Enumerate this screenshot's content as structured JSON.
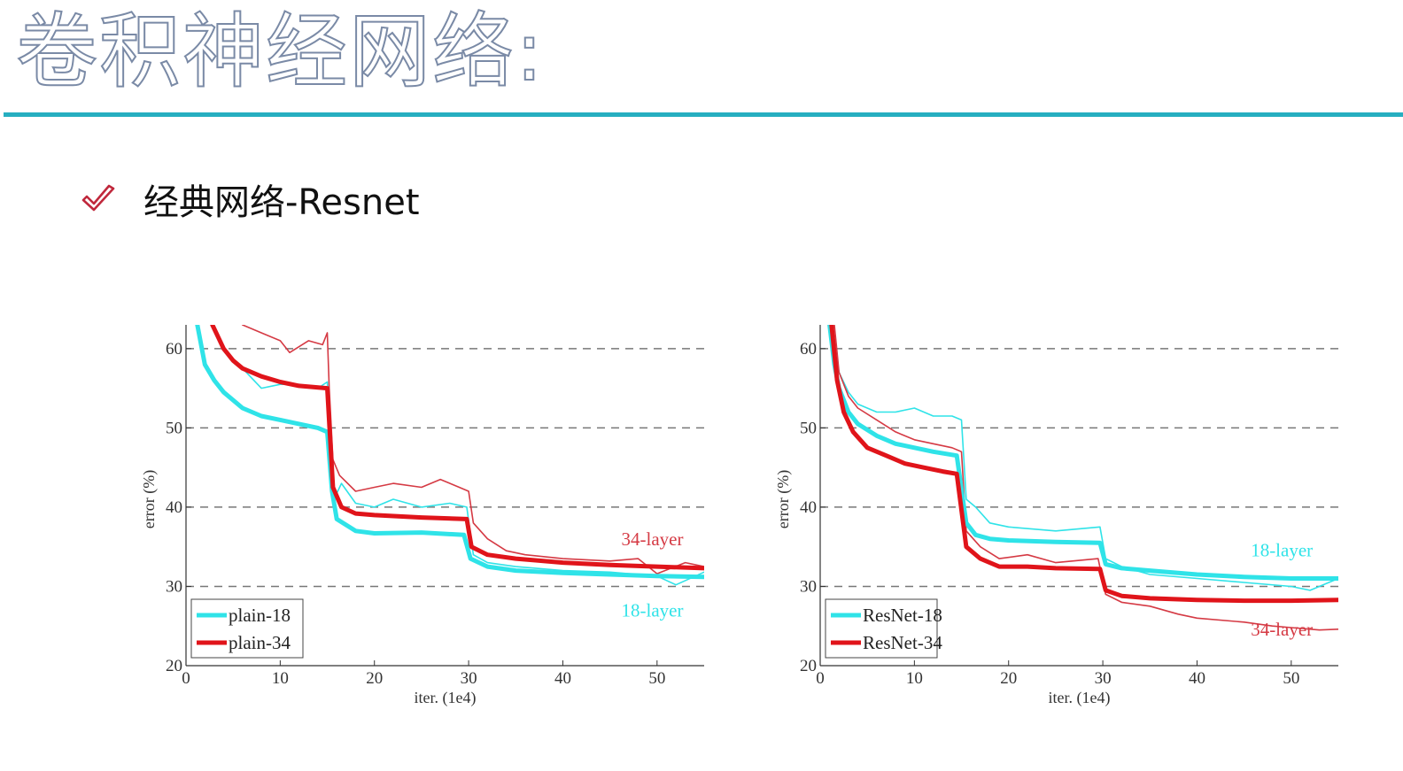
{
  "slide": {
    "title": "卷积神经网络:",
    "bullet": "经典网络-Resnet"
  },
  "colors": {
    "title_rule": "#26aec0",
    "check": "#c0283c",
    "cyan": "#2fe3e8",
    "red": "#e0141a",
    "thin_red": "#d53a44"
  },
  "chart_data": [
    {
      "type": "line",
      "title": "",
      "xlabel": "iter. (1e4)",
      "ylabel": "error (%)",
      "xlim": [
        0,
        55
      ],
      "ylim": [
        20,
        63
      ],
      "xticks": [
        "0",
        "10",
        "20",
        "30",
        "40",
        "50"
      ],
      "yticks": [
        "20",
        "30",
        "40",
        "50",
        "60"
      ],
      "gridlines_y": [
        30,
        40,
        50,
        60
      ],
      "legend": {
        "position": "bottom-left",
        "entries": [
          "plain-18",
          "plain-34"
        ]
      },
      "annotations": [
        {
          "text": "34-layer",
          "x": 49.5,
          "y": 35.2,
          "color": "red"
        },
        {
          "text": "18-layer",
          "x": 49.5,
          "y": 26.2,
          "color": "cyan"
        }
      ],
      "series": [
        {
          "name": "plain-18",
          "kind": "train",
          "color": "cyan",
          "points": [
            [
              1.2,
              63
            ],
            [
              2,
              58
            ],
            [
              3,
              56
            ],
            [
              4,
              54.5
            ],
            [
              5,
              53.5
            ],
            [
              6,
              52.5
            ],
            [
              8,
              51.5
            ],
            [
              10,
              51
            ],
            [
              12,
              50.5
            ],
            [
              14,
              50
            ],
            [
              15,
              49.5
            ],
            [
              15.5,
              42
            ],
            [
              16,
              38.5
            ],
            [
              18,
              37
            ],
            [
              20,
              36.7
            ],
            [
              25,
              36.8
            ],
            [
              29.5,
              36.5
            ],
            [
              30.2,
              33.5
            ],
            [
              32,
              32.5
            ],
            [
              35,
              32
            ],
            [
              40,
              31.7
            ],
            [
              45,
              31.5
            ],
            [
              50,
              31.3
            ],
            [
              55,
              31.2
            ]
          ]
        },
        {
          "name": "plain-34",
          "kind": "train",
          "color": "red",
          "points": [
            [
              2.8,
              63
            ],
            [
              4,
              60
            ],
            [
              5,
              58.5
            ],
            [
              6,
              57.5
            ],
            [
              8,
              56.5
            ],
            [
              10,
              55.8
            ],
            [
              12,
              55.3
            ],
            [
              15,
              55
            ],
            [
              15.6,
              42.5
            ],
            [
              16.5,
              40
            ],
            [
              18,
              39.2
            ],
            [
              20,
              39
            ],
            [
              25,
              38.7
            ],
            [
              29.8,
              38.5
            ],
            [
              30.3,
              35
            ],
            [
              32,
              34
            ],
            [
              35,
              33.5
            ],
            [
              40,
              33
            ],
            [
              45,
              32.7
            ],
            [
              50,
              32.5
            ],
            [
              55,
              32.3
            ]
          ]
        },
        {
          "name": "plain-18",
          "kind": "val",
          "color": "cyan",
          "points": [
            [
              6,
              57.5
            ],
            [
              8,
              55
            ],
            [
              10,
              55.5
            ],
            [
              12,
              55.5
            ],
            [
              14,
              55
            ],
            [
              15,
              55.8
            ],
            [
              15.7,
              41
            ],
            [
              16.5,
              43
            ],
            [
              18,
              40.5
            ],
            [
              20,
              40
            ],
            [
              22,
              41
            ],
            [
              25,
              40
            ],
            [
              28,
              40.5
            ],
            [
              29.8,
              40
            ],
            [
              30.5,
              34
            ],
            [
              32,
              33
            ],
            [
              35,
              32.5
            ],
            [
              40,
              32
            ],
            [
              45,
              31.8
            ],
            [
              50,
              31.3
            ],
            [
              52,
              30.2
            ],
            [
              55,
              31.8
            ]
          ]
        },
        {
          "name": "plain-34",
          "kind": "val",
          "color": "red",
          "points": [
            [
              6,
              63
            ],
            [
              8,
              62
            ],
            [
              10,
              61
            ],
            [
              11,
              59.5
            ],
            [
              13,
              61
            ],
            [
              14.5,
              60.5
            ],
            [
              15,
              62
            ],
            [
              15.2,
              55
            ],
            [
              15.6,
              46
            ],
            [
              16.3,
              44
            ],
            [
              18,
              42
            ],
            [
              20,
              42.5
            ],
            [
              22,
              43
            ],
            [
              25,
              42.5
            ],
            [
              27,
              43.5
            ],
            [
              29,
              42.5
            ],
            [
              30,
              42
            ],
            [
              30.5,
              38
            ],
            [
              32,
              36
            ],
            [
              34,
              34.5
            ],
            [
              36,
              34
            ],
            [
              40,
              33.5
            ],
            [
              45,
              33.2
            ],
            [
              48,
              33.5
            ],
            [
              50,
              31.6
            ],
            [
              53,
              33
            ],
            [
              55,
              32.5
            ]
          ]
        }
      ]
    },
    {
      "type": "line",
      "title": "",
      "xlabel": "iter. (1e4)",
      "ylabel": "error (%)",
      "xlim": [
        0,
        55
      ],
      "ylim": [
        20,
        63
      ],
      "xticks": [
        "0",
        "10",
        "20",
        "30",
        "40",
        "50"
      ],
      "yticks": [
        "20",
        "30",
        "40",
        "50",
        "60"
      ],
      "gridlines_y": [
        30,
        40,
        50,
        60
      ],
      "legend": {
        "position": "bottom-left",
        "entries": [
          "ResNet-18",
          "ResNet-34"
        ]
      },
      "annotations": [
        {
          "text": "18-layer",
          "x": 49,
          "y": 33.8,
          "color": "cyan"
        },
        {
          "text": "34-layer",
          "x": 49,
          "y": 23.8,
          "color": "red"
        }
      ],
      "series": [
        {
          "name": "ResNet-18",
          "kind": "train",
          "color": "cyan",
          "points": [
            [
              1,
              63
            ],
            [
              1.5,
              58
            ],
            [
              2,
              55
            ],
            [
              3,
              52
            ],
            [
              4,
              50.5
            ],
            [
              6,
              49
            ],
            [
              8,
              48
            ],
            [
              10,
              47.5
            ],
            [
              12,
              47
            ],
            [
              14.5,
              46.5
            ],
            [
              15.5,
              38
            ],
            [
              16.5,
              36.5
            ],
            [
              18,
              36
            ],
            [
              20,
              35.8
            ],
            [
              25,
              35.6
            ],
            [
              29.7,
              35.5
            ],
            [
              30.3,
              32.8
            ],
            [
              32,
              32.3
            ],
            [
              35,
              32
            ],
            [
              40,
              31.5
            ],
            [
              45,
              31.2
            ],
            [
              50,
              31
            ],
            [
              55,
              31
            ]
          ]
        },
        {
          "name": "ResNet-34",
          "kind": "train",
          "color": "red",
          "points": [
            [
              1.2,
              63
            ],
            [
              1.8,
              56
            ],
            [
              2.5,
              52
            ],
            [
              3.5,
              49.5
            ],
            [
              5,
              47.5
            ],
            [
              7,
              46.5
            ],
            [
              9,
              45.5
            ],
            [
              11,
              45
            ],
            [
              13,
              44.5
            ],
            [
              14.5,
              44.2
            ],
            [
              15.5,
              35
            ],
            [
              17,
              33.5
            ],
            [
              19,
              32.5
            ],
            [
              22,
              32.5
            ],
            [
              25,
              32.3
            ],
            [
              29.7,
              32.2
            ],
            [
              30.3,
              29.5
            ],
            [
              32,
              28.8
            ],
            [
              35,
              28.5
            ],
            [
              40,
              28.3
            ],
            [
              45,
              28.2
            ],
            [
              50,
              28.2
            ],
            [
              55,
              28.3
            ]
          ]
        },
        {
          "name": "ResNet-18",
          "kind": "val",
          "color": "cyan",
          "points": [
            [
              1,
              63
            ],
            [
              2,
              57
            ],
            [
              3,
              54.5
            ],
            [
              4,
              53
            ],
            [
              6,
              52
            ],
            [
              8,
              52
            ],
            [
              10,
              52.5
            ],
            [
              12,
              51.5
            ],
            [
              14,
              51.5
            ],
            [
              15,
              51
            ],
            [
              15.5,
              41
            ],
            [
              16.5,
              40
            ],
            [
              18,
              38
            ],
            [
              20,
              37.5
            ],
            [
              25,
              37
            ],
            [
              29.7,
              37.5
            ],
            [
              30.3,
              33.5
            ],
            [
              32,
              32.5
            ],
            [
              35,
              31.5
            ],
            [
              40,
              31
            ],
            [
              45,
              30.5
            ],
            [
              50,
              30
            ],
            [
              52,
              29.5
            ],
            [
              55,
              31
            ]
          ]
        },
        {
          "name": "ResNet-34",
          "kind": "val",
          "color": "red",
          "points": [
            [
              1.5,
              63
            ],
            [
              2,
              57
            ],
            [
              3,
              54
            ],
            [
              4,
              52.5
            ],
            [
              6,
              51
            ],
            [
              8,
              49.5
            ],
            [
              10,
              48.5
            ],
            [
              12,
              48
            ],
            [
              14,
              47.5
            ],
            [
              15,
              47
            ],
            [
              15.5,
              37
            ],
            [
              17,
              35
            ],
            [
              19,
              33.5
            ],
            [
              22,
              34
            ],
            [
              25,
              33
            ],
            [
              29.5,
              33.5
            ],
            [
              30.3,
              29
            ],
            [
              32,
              28
            ],
            [
              35,
              27.5
            ],
            [
              38,
              26.5
            ],
            [
              40,
              26
            ],
            [
              45,
              25.5
            ],
            [
              48,
              25
            ],
            [
              50,
              24.8
            ],
            [
              53,
              24.5
            ],
            [
              55,
              24.6
            ]
          ]
        }
      ]
    }
  ]
}
